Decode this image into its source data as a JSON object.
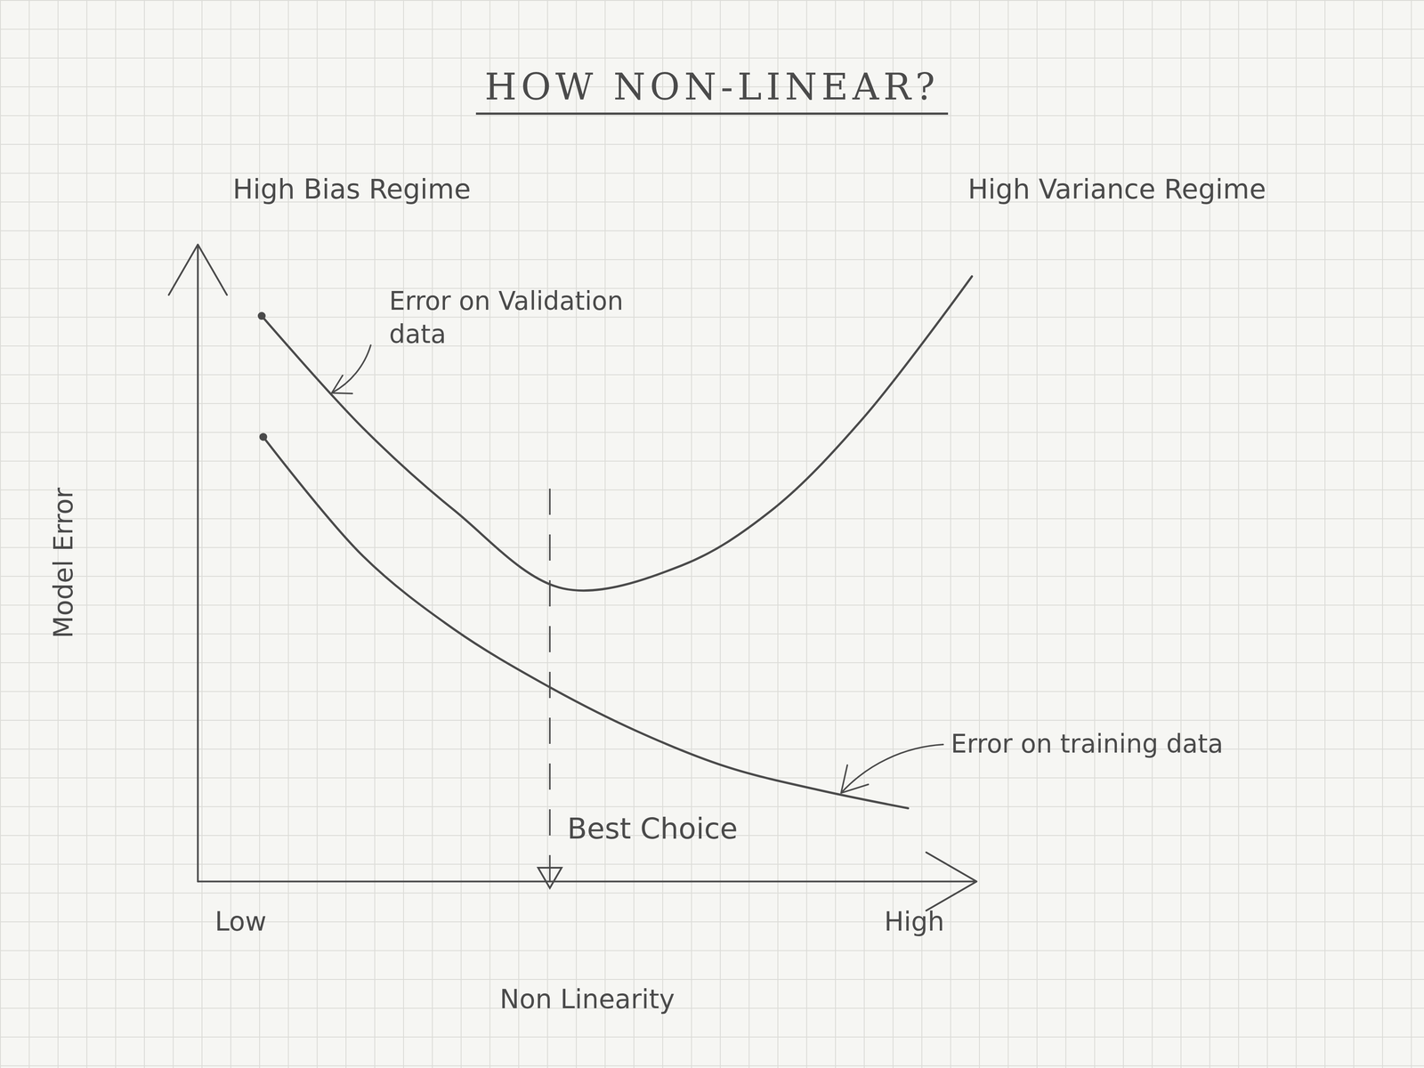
{
  "chart_data": {
    "type": "line",
    "title": "HOW NON-LINEAR?",
    "x_label": "Non Linearity",
    "y_label": "Model Error",
    "xlim": [
      0,
      10
    ],
    "ylim": [
      0,
      10
    ],
    "xticks": [
      {
        "value": 0.55,
        "label": "Low"
      },
      {
        "value": 9.2,
        "label": "High"
      }
    ],
    "tick_labels": "x",
    "grid": false,
    "regime_labels": [
      "High Bias Regime",
      "High Variance Regime"
    ],
    "best_choice": {
      "x": 4.52,
      "label": "Best Choice"
    },
    "series": [
      {
        "name": "Error on Validation data",
        "color": "#4a4a4a",
        "x": [
          0.82,
          2.12,
          3.29,
          4.69,
          6.21,
          7.37,
          8.54,
          9.94
        ],
        "values": [
          8.88,
          7.12,
          5.83,
          4.6,
          4.96,
          5.83,
          7.27,
          9.5
        ]
      },
      {
        "name": "Error on training data",
        "color": "#4a4a4a",
        "x": [
          0.84,
          2.12,
          3.29,
          4.46,
          5.62,
          6.79,
          7.96,
          9.12
        ],
        "values": [
          6.98,
          5.11,
          3.96,
          3.09,
          2.37,
          1.8,
          1.44,
          1.15
        ]
      }
    ]
  }
}
